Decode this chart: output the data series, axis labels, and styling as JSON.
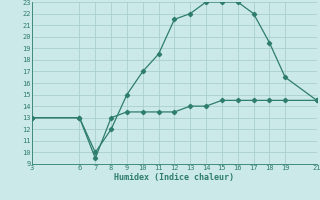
{
  "xlabel": "Humidex (Indice chaleur)",
  "line1_x": [
    3,
    6,
    7,
    8,
    9,
    10,
    11,
    12,
    13,
    14,
    15,
    16,
    17,
    18,
    19,
    21
  ],
  "line1_y": [
    13,
    13,
    10,
    12,
    15,
    17,
    18.5,
    21.5,
    22,
    23,
    23,
    23,
    22,
    19.5,
    16.5,
    14.5
  ],
  "line2_x": [
    3,
    6,
    7,
    8,
    9,
    10,
    11,
    12,
    13,
    14,
    15,
    16,
    17,
    18,
    19,
    21
  ],
  "line2_y": [
    13,
    13,
    9.5,
    13,
    13.5,
    13.5,
    13.5,
    13.5,
    14,
    14,
    14.5,
    14.5,
    14.5,
    14.5,
    14.5,
    14.5
  ],
  "line_color": "#2e7d6e",
  "bg_color": "#cce9e9",
  "grid_color": "#aacfcf",
  "xlim": [
    3,
    21
  ],
  "ylim": [
    9,
    23
  ],
  "xticks": [
    3,
    6,
    7,
    8,
    9,
    10,
    11,
    12,
    13,
    14,
    15,
    16,
    17,
    18,
    19,
    21
  ],
  "yticks": [
    9,
    10,
    11,
    12,
    13,
    14,
    15,
    16,
    17,
    18,
    19,
    20,
    21,
    22,
    23
  ]
}
